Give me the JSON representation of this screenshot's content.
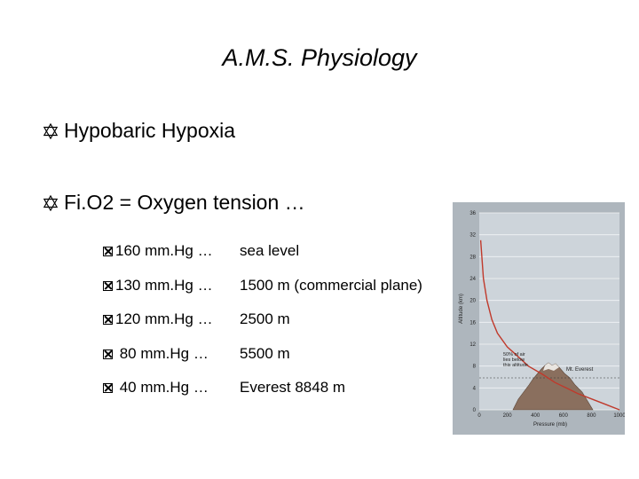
{
  "slide": {
    "title": "A.M.S. Physiology",
    "bullets": [
      "Hypobaric Hypoxia",
      "Fi.O2 = Oxygen tension …"
    ],
    "items": [
      {
        "value": "160 mm.Hg …",
        "altitude": "sea level"
      },
      {
        "value": "130 mm.Hg …",
        "altitude": "1500 m (commercial plane)"
      },
      {
        "value": "120 mm.Hg …",
        "altitude": "2500 m"
      },
      {
        "value": " 80 mm.Hg …",
        "altitude": "5500 m"
      },
      {
        "value": " 40 mm.Hg …",
        "altitude": "Everest  8848 m"
      }
    ]
  },
  "chart_data": {
    "type": "line",
    "xlabel": "Pressure (mb)",
    "ylabel": "Altitude (km)",
    "x_ticks": [
      "0",
      "200",
      "400",
      "600",
      "800",
      "1000"
    ],
    "y_ticks": [
      "0",
      "4",
      "8",
      "12",
      "16",
      "20",
      "24",
      "28",
      "32",
      "36"
    ],
    "xlim": [
      0,
      1000
    ],
    "ylim": [
      0,
      36
    ],
    "annotation": [
      "50% of air",
      "lies below",
      "this altitude"
    ],
    "mountain_label": "Mt. Everest",
    "series": [
      {
        "x": [
          10,
          30,
          55,
          90,
          130,
          200,
          265,
          350,
          450,
          540,
          620,
          700,
          800,
          900,
          1000
        ],
        "y": [
          31,
          24,
          20,
          16.5,
          14,
          11.5,
          10,
          8,
          6.5,
          5,
          4,
          3,
          2,
          1,
          0
        ]
      }
    ],
    "colors": {
      "curve": "#c0392b",
      "background": "#c9d1d9",
      "frame": "#aeb6bd"
    }
  }
}
